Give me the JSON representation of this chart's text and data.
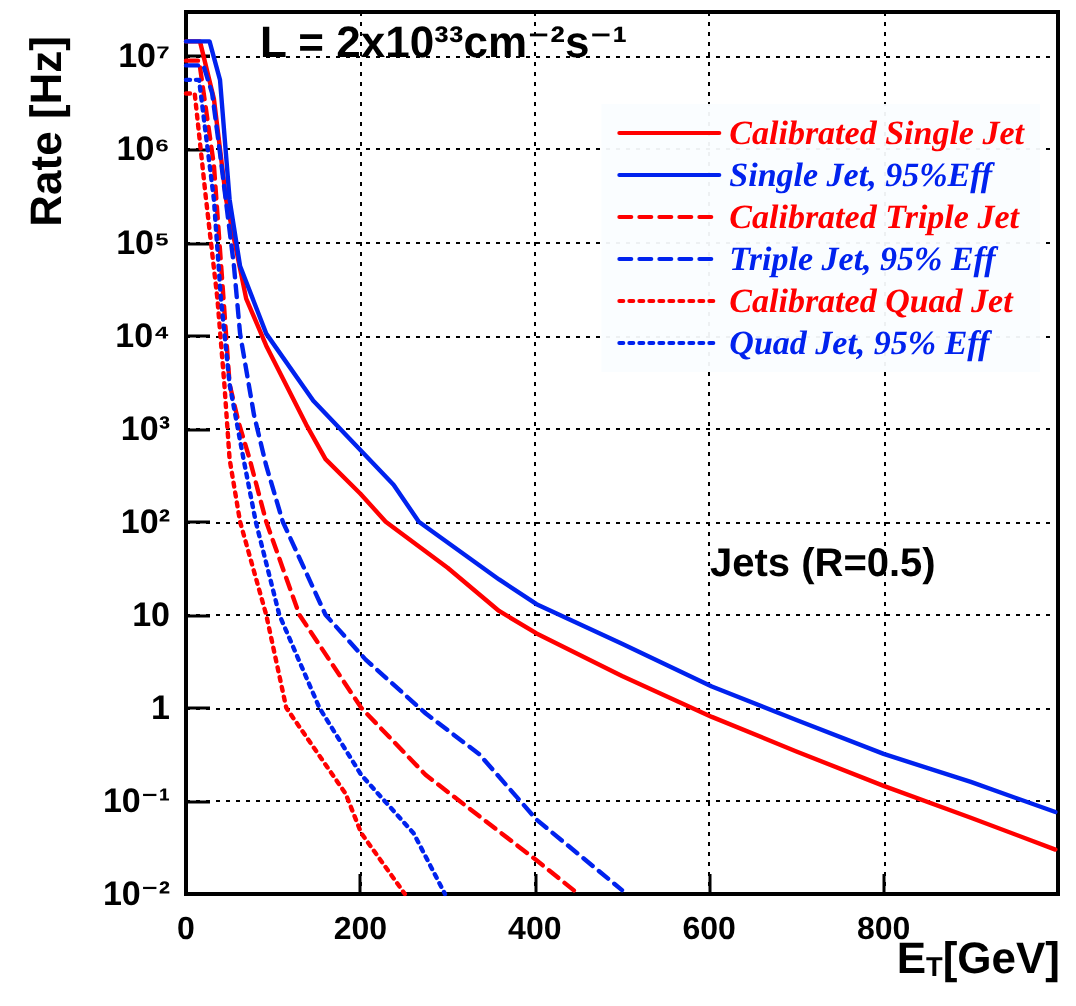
{
  "chart_data": {
    "type": "line",
    "xlabel": "E$_{T}$[GeV]",
    "ylabel": "Rate [Hz]",
    "annotations": [
      "L = 2x10³³cm⁻²s⁻¹",
      "Jets (R=0.5)"
    ],
    "xlim": [
      0,
      1000
    ],
    "xticks": [
      0,
      200,
      400,
      600,
      800
    ],
    "ylim": [
      0.01,
      30000000
    ],
    "log": "y",
    "yticks": [
      {
        "value": 10000000,
        "label": "10⁷"
      },
      {
        "value": 1000000,
        "label": "10⁶"
      },
      {
        "value": 100000,
        "label": "10⁵"
      },
      {
        "value": 10000,
        "label": "10⁴"
      },
      {
        "value": 1000,
        "label": "10³"
      },
      {
        "value": 100,
        "label": "10²"
      },
      10,
      1,
      {
        "value": 0.1,
        "label": "10⁻¹"
      },
      {
        "value": 0.01,
        "label": "10⁻²"
      }
    ],
    "grid": true,
    "legend": "top right",
    "marker": "none",
    "series": [
      {
        "name": "Calibrated Single Jet",
        "color": "#ff0000",
        "line_style": "solid",
        "x": [
          0,
          16,
          32,
          46,
          55,
          69,
          92,
          138,
          160,
          200,
          229,
          300,
          359,
          402,
          500,
          603,
          700,
          800,
          900,
          997
        ],
        "values": [
          14500000,
          14500000,
          3500000,
          290000,
          110000,
          25000,
          7800,
          1100,
          470,
          200,
          100,
          32,
          11,
          6.3,
          2.2,
          0.8,
          0.34,
          0.145,
          0.066,
          0.03
        ]
      },
      {
        "name": "Single Jet, 95%Eff",
        "color": "#0022ee",
        "line_style": "solid",
        "x": [
          0,
          27,
          39,
          50,
          62,
          92,
          146,
          238,
          267,
          359,
          402,
          500,
          603,
          700,
          800,
          900,
          997
        ],
        "values": [
          14500000,
          14500000,
          5600000,
          290000,
          56000,
          10500,
          2000,
          250,
          100,
          24,
          13,
          4.9,
          1.7,
          0.74,
          0.32,
          0.16,
          0.076
        ]
      },
      {
        "name": "Calibrated Triple Jet",
        "color": "#ff0000",
        "line_style": "dashed",
        "x": [
          0,
          15,
          32,
          43,
          50,
          60,
          73,
          92,
          130,
          201,
          275,
          402,
          450
        ],
        "values": [
          9000000,
          9000000,
          680000,
          25000,
          3000,
          1200,
          470,
          100,
          10,
          1,
          0.19,
          0.023,
          0.01
        ]
      },
      {
        "name": "Triple Jet, 95% Eff",
        "color": "#0022ee",
        "line_style": "dashed",
        "x": [
          0,
          20,
          30,
          39,
          55,
          62,
          78,
          92,
          111,
          160,
          206,
          275,
          336,
          402,
          500
        ],
        "values": [
          8000000,
          8000000,
          4000000,
          910000,
          56000,
          10500,
          1400,
          400,
          100,
          10,
          3.3,
          0.87,
          0.32,
          0.063,
          0.011
        ]
      },
      {
        "name": "Calibrated Quad Jet",
        "color": "#ff0000",
        "line_style": "dotted",
        "x": [
          0,
          10,
          23,
          36,
          44,
          50,
          62,
          92,
          115,
          183,
          201,
          251
        ],
        "values": [
          4000000,
          4000000,
          290000,
          25000,
          3000,
          470,
          100,
          10,
          1,
          0.12,
          0.045,
          0.01
        ]
      },
      {
        "name": "Quad Jet, 95% Eff",
        "color": "#0022ee",
        "line_style": "dotted",
        "x": [
          0,
          15,
          32,
          40,
          50,
          66,
          80,
          107,
          153,
          201,
          261,
          297
        ],
        "values": [
          5600000,
          5600000,
          290000,
          25000,
          3000,
          470,
          100,
          10,
          1,
          0.19,
          0.045,
          0.01
        ]
      }
    ]
  }
}
